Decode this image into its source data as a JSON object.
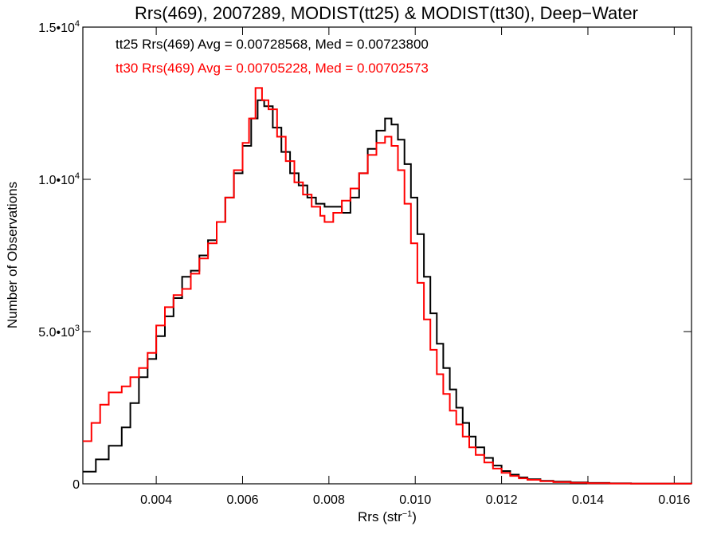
{
  "chart_data": {
    "type": "line",
    "step": true,
    "title": "Rrs(469), 2007289, MODIST(tt25) & MODIST(tt30), Deep−Water",
    "xlabel": {
      "text": "Rrs (str",
      "sup": "−1",
      "end": ")"
    },
    "ylabel": "Number of Observations",
    "xlim": [
      0.0023,
      0.0164
    ],
    "ylim": [
      0,
      15000
    ],
    "grid": false,
    "x_ticks": [
      {
        "value": 0.004,
        "label": "0.004"
      },
      {
        "value": 0.006,
        "label": "0.006"
      },
      {
        "value": 0.008,
        "label": "0.008"
      },
      {
        "value": 0.01,
        "label": "0.010"
      },
      {
        "value": 0.012,
        "label": "0.012"
      },
      {
        "value": 0.014,
        "label": "0.014"
      },
      {
        "value": 0.016,
        "label": "0.016"
      }
    ],
    "y_ticks": [
      {
        "value": 0,
        "base": "0",
        "sup": ""
      },
      {
        "value": 5000,
        "base": "5.0•10",
        "sup": "3"
      },
      {
        "value": 10000,
        "base": "1.0•10",
        "sup": "4"
      },
      {
        "value": 15000,
        "base": "1.5•10",
        "sup": "4"
      }
    ],
    "annotations": [
      {
        "text": "tt25 Rrs(469) Avg = 0.00728568, Med = 0.00723800",
        "color": "#000000"
      },
      {
        "text": "tt30 Rrs(469) Avg = 0.00705228, Med = 0.00702573",
        "color": "#ff0000"
      }
    ],
    "series": [
      {
        "color": "#000000",
        "points": [
          [
            0.0023,
            400
          ],
          [
            0.0026,
            800
          ],
          [
            0.0029,
            1250
          ],
          [
            0.0032,
            1850
          ],
          [
            0.0034,
            2650
          ],
          [
            0.0036,
            3500
          ],
          [
            0.0038,
            4100
          ],
          [
            0.004,
            4850
          ],
          [
            0.0042,
            5500
          ],
          [
            0.0044,
            6100
          ],
          [
            0.0046,
            6800
          ],
          [
            0.0048,
            7000
          ],
          [
            0.005,
            7500
          ],
          [
            0.0052,
            8000
          ],
          [
            0.0054,
            8600
          ],
          [
            0.0056,
            9400
          ],
          [
            0.0058,
            10200
          ],
          [
            0.006,
            11100
          ],
          [
            0.0062,
            12000
          ],
          [
            0.00635,
            12600
          ],
          [
            0.0065,
            12400
          ],
          [
            0.0067,
            11700
          ],
          [
            0.0069,
            10900
          ],
          [
            0.0071,
            10200
          ],
          [
            0.0073,
            9800
          ],
          [
            0.0075,
            9400
          ],
          [
            0.0077,
            9200
          ],
          [
            0.0079,
            9100
          ],
          [
            0.0081,
            9100
          ],
          [
            0.0083,
            8900
          ],
          [
            0.0085,
            9400
          ],
          [
            0.0087,
            10200
          ],
          [
            0.0089,
            11000
          ],
          [
            0.0091,
            11600
          ],
          [
            0.0093,
            12000
          ],
          [
            0.00945,
            11800
          ],
          [
            0.0096,
            11300
          ],
          [
            0.00975,
            10500
          ],
          [
            0.0099,
            9400
          ],
          [
            0.01005,
            8200
          ],
          [
            0.0102,
            6800
          ],
          [
            0.01035,
            5600
          ],
          [
            0.0105,
            4600
          ],
          [
            0.01065,
            3800
          ],
          [
            0.0108,
            3100
          ],
          [
            0.01095,
            2500
          ],
          [
            0.0111,
            2000
          ],
          [
            0.01125,
            1550
          ],
          [
            0.0114,
            1200
          ],
          [
            0.0116,
            850
          ],
          [
            0.0118,
            600
          ],
          [
            0.012,
            420
          ],
          [
            0.0122,
            300
          ],
          [
            0.0124,
            210
          ],
          [
            0.0126,
            150
          ],
          [
            0.0129,
            100
          ],
          [
            0.0132,
            70
          ],
          [
            0.0136,
            45
          ],
          [
            0.014,
            30
          ],
          [
            0.0145,
            15
          ],
          [
            0.015,
            8
          ],
          [
            0.0156,
            4
          ],
          [
            0.0164,
            0
          ]
        ]
      },
      {
        "color": "#ff0000",
        "points": [
          [
            0.0023,
            1400
          ],
          [
            0.0025,
            2000
          ],
          [
            0.0027,
            2600
          ],
          [
            0.0029,
            3000
          ],
          [
            0.0032,
            3200
          ],
          [
            0.0034,
            3500
          ],
          [
            0.0036,
            3800
          ],
          [
            0.0038,
            4300
          ],
          [
            0.004,
            5200
          ],
          [
            0.0042,
            5800
          ],
          [
            0.0044,
            6200
          ],
          [
            0.0046,
            6400
          ],
          [
            0.0048,
            6900
          ],
          [
            0.005,
            7400
          ],
          [
            0.0052,
            7900
          ],
          [
            0.0054,
            8600
          ],
          [
            0.0056,
            9400
          ],
          [
            0.0058,
            10300
          ],
          [
            0.006,
            11200
          ],
          [
            0.00615,
            12000
          ],
          [
            0.0063,
            13000
          ],
          [
            0.00645,
            12600
          ],
          [
            0.0066,
            12300
          ],
          [
            0.0068,
            11400
          ],
          [
            0.007,
            10600
          ],
          [
            0.0072,
            9900
          ],
          [
            0.0074,
            9500
          ],
          [
            0.0076,
            9100
          ],
          [
            0.0078,
            8800
          ],
          [
            0.0079,
            8600
          ],
          [
            0.0081,
            8900
          ],
          [
            0.0083,
            9300
          ],
          [
            0.0085,
            9700
          ],
          [
            0.0087,
            10200
          ],
          [
            0.0089,
            10800
          ],
          [
            0.0091,
            11200
          ],
          [
            0.0093,
            11400
          ],
          [
            0.00945,
            11100
          ],
          [
            0.0096,
            10300
          ],
          [
            0.00975,
            9200
          ],
          [
            0.0099,
            7900
          ],
          [
            0.01005,
            6600
          ],
          [
            0.0102,
            5400
          ],
          [
            0.01035,
            4400
          ],
          [
            0.0105,
            3600
          ],
          [
            0.01065,
            2950
          ],
          [
            0.0108,
            2400
          ],
          [
            0.01095,
            1950
          ],
          [
            0.0111,
            1550
          ],
          [
            0.01125,
            1200
          ],
          [
            0.0114,
            950
          ],
          [
            0.0116,
            700
          ],
          [
            0.0118,
            500
          ],
          [
            0.012,
            360
          ],
          [
            0.0122,
            260
          ],
          [
            0.0124,
            180
          ],
          [
            0.0126,
            130
          ],
          [
            0.0129,
            85
          ],
          [
            0.0132,
            55
          ],
          [
            0.0136,
            35
          ],
          [
            0.014,
            20
          ],
          [
            0.0145,
            10
          ],
          [
            0.015,
            5
          ],
          [
            0.0164,
            0
          ]
        ]
      }
    ]
  }
}
